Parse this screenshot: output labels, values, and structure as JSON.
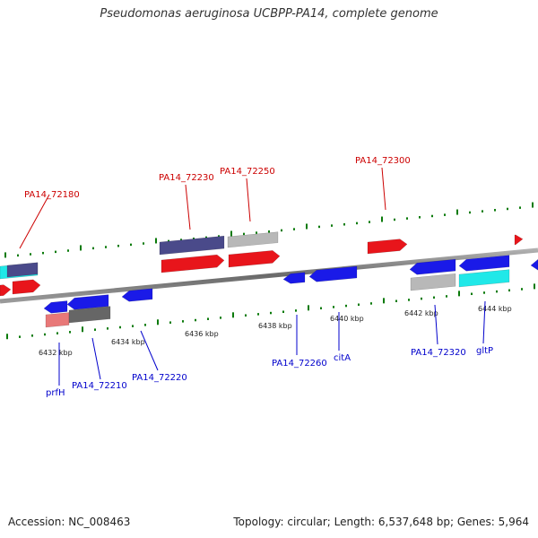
{
  "title": "Pseudomonas aeruginosa UCBPP-PA14, complete genome",
  "footer": {
    "accession": "Accession: NC_008463",
    "info": "Topology: circular; Length: 6,537,648 bp; Genes: 5,964"
  },
  "colors": {
    "forward_gene": "#e8151b",
    "reverse_gene": "#1a1ae8",
    "cog_purple": "#4a4a8a",
    "cog_gray": "#b8b8b8",
    "cog_cyan": "#20e8e8",
    "cog_pink": "#e87878",
    "cog_darkgray": "#666666",
    "tick_green": "#0a7a0a",
    "backbone": "#888888",
    "forward_label": "#cc0000",
    "reverse_label": "#0000cc"
  },
  "scale_labels": [
    "6432 kbp",
    "6434 kbp",
    "6436 kbp",
    "6438 kbp",
    "6440 kbp",
    "6442 kbp",
    "6444 kbp"
  ],
  "forward_genes": [
    "PA14_72180",
    "PA14_72230",
    "PA14_72250",
    "PA14_72300"
  ],
  "reverse_genes": [
    "prfH",
    "PA14_72210",
    "PA14_72220",
    "PA14_72260",
    "citA",
    "PA14_72320",
    "gltP"
  ]
}
